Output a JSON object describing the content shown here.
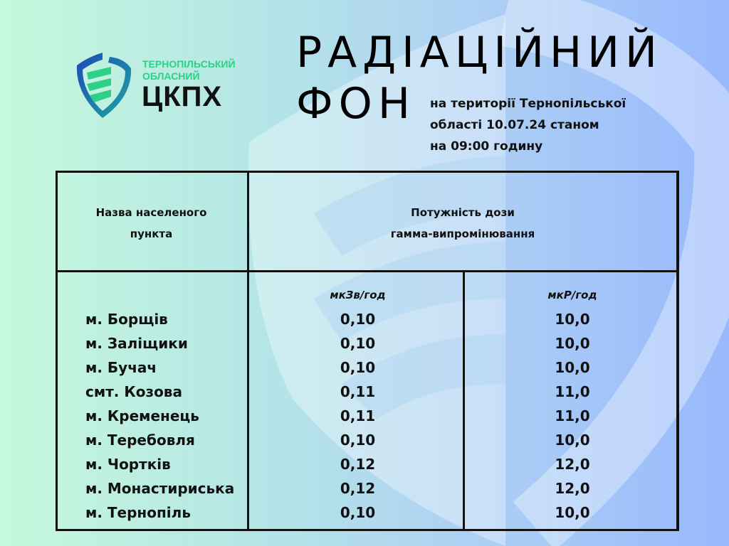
{
  "logo": {
    "line1": "ТЕРНОПІЛЬСЬКИЙ",
    "line2": "ОБЛАСНИЙ",
    "brand": "ЦКПХ",
    "colors": {
      "blue": "#1e49b6",
      "green": "#2ecf86"
    }
  },
  "title": {
    "line1": "РАДІАЦІЙНИЙ",
    "line2": "ФОН"
  },
  "subtitle": {
    "line1": "на території Тернопільської",
    "line2": "області 10.07.24 станом",
    "line3": "на 09:00 годину"
  },
  "table": {
    "header_name": {
      "line1": "Назва населеного",
      "line2": "пункта"
    },
    "header_dose": {
      "line1": "Потужність дози",
      "line2": "гамма-випромінювання"
    },
    "unit1": "мкЗв/год",
    "unit2": "мкР/год",
    "rows": [
      {
        "name": "м. Борщів",
        "usv": "0,10",
        "ur": "10,0"
      },
      {
        "name": "м. Заліщики",
        "usv": "0,10",
        "ur": "10,0"
      },
      {
        "name": "м. Бучач",
        "usv": "0,10",
        "ur": "10,0"
      },
      {
        "name": "смт.  Козова",
        "usv": "0,11",
        "ur": "11,0"
      },
      {
        "name": "м. Кременець",
        "usv": "0,11",
        "ur": "11,0"
      },
      {
        "name": "м. Теребовля",
        "usv": "0,10",
        "ur": "10,0"
      },
      {
        "name": "м. Чортків",
        "usv": "0,12",
        "ur": "12,0"
      },
      {
        "name": "м. Монастириська",
        "usv": "0,12",
        "ur": "12,0"
      },
      {
        "name": "м. Тернопіль",
        "usv": "0,10",
        "ur": "10,0"
      }
    ]
  }
}
